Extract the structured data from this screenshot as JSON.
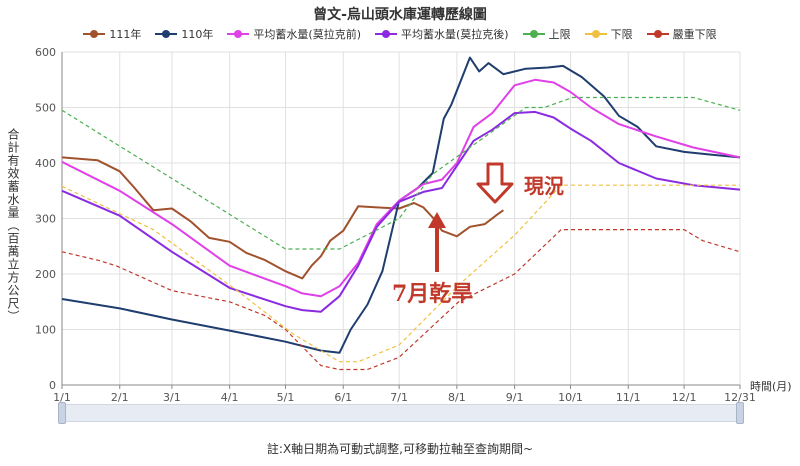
{
  "chart_data": {
    "type": "line",
    "title": "曾文-烏山頭水庫運轉歷線圖",
    "ylabel": "合計有效蓄水量（百萬立方公尺）",
    "xlabel": "時間(月)",
    "ylim": [
      0,
      600
    ],
    "yticks": [
      0,
      100,
      200,
      300,
      400,
      500,
      600
    ],
    "xlim": [
      1,
      365
    ],
    "xticks": [
      {
        "day": 1,
        "label": "1/1"
      },
      {
        "day": 32,
        "label": "2/1"
      },
      {
        "day": 60,
        "label": "3/1"
      },
      {
        "day": 91,
        "label": "4/1"
      },
      {
        "day": 121,
        "label": "5/1"
      },
      {
        "day": 152,
        "label": "6/1"
      },
      {
        "day": 182,
        "label": "7/1"
      },
      {
        "day": 213,
        "label": "8/1"
      },
      {
        "day": 244,
        "label": "9/1"
      },
      {
        "day": 274,
        "label": "10/1"
      },
      {
        "day": 305,
        "label": "11/1"
      },
      {
        "day": 335,
        "label": "12/1"
      },
      {
        "day": 365,
        "label": "12/31"
      }
    ],
    "grid": true,
    "legend_position": "top",
    "series": [
      {
        "name": "111年",
        "color": "#a0522d",
        "style": "solid",
        "marker": true,
        "x": [
          1,
          20,
          32,
          40,
          50,
          60,
          70,
          80,
          91,
          100,
          110,
          121,
          130,
          135,
          140,
          145,
          152,
          160,
          170,
          182,
          190,
          195,
          200,
          205,
          213,
          220,
          228,
          235,
          238
        ],
        "y": [
          410,
          405,
          385,
          355,
          315,
          318,
          295,
          265,
          258,
          238,
          225,
          205,
          192,
          215,
          232,
          260,
          278,
          322,
          320,
          318,
          328,
          320,
          302,
          278,
          268,
          285,
          290,
          308,
          315
        ]
      },
      {
        "name": "110年",
        "color": "#1f3d6e",
        "style": "solid",
        "marker": false,
        "x": [
          1,
          32,
          60,
          91,
          121,
          140,
          150,
          156,
          165,
          173,
          182,
          192,
          200,
          206,
          210,
          220,
          225,
          230,
          238,
          250,
          262,
          270,
          280,
          292,
          300,
          310,
          320,
          335,
          350,
          365
        ],
        "y": [
          155,
          138,
          118,
          98,
          78,
          62,
          58,
          100,
          145,
          205,
          332,
          355,
          382,
          480,
          505,
          590,
          565,
          580,
          560,
          570,
          572,
          575,
          555,
          520,
          485,
          465,
          430,
          420,
          415,
          410
        ]
      },
      {
        "name": "平均蓄水量(莫拉克前)",
        "color": "#e040e8",
        "style": "solid",
        "marker": false,
        "x": [
          1,
          32,
          60,
          91,
          121,
          130,
          140,
          150,
          160,
          170,
          182,
          195,
          205,
          213,
          222,
          232,
          244,
          255,
          265,
          274,
          285,
          300,
          320,
          340,
          365
        ],
        "y": [
          402,
          350,
          290,
          215,
          178,
          165,
          160,
          178,
          220,
          290,
          332,
          362,
          370,
          400,
          465,
          490,
          540,
          550,
          545,
          528,
          500,
          470,
          448,
          428,
          410
        ]
      },
      {
        "name": "平均蓄水量(莫拉克後)",
        "color": "#8a2be2",
        "style": "solid",
        "marker": false,
        "x": [
          1,
          32,
          60,
          91,
          121,
          130,
          140,
          150,
          160,
          170,
          182,
          195,
          205,
          213,
          222,
          232,
          244,
          255,
          265,
          274,
          285,
          300,
          320,
          340,
          365
        ],
        "y": [
          350,
          305,
          240,
          175,
          142,
          135,
          132,
          160,
          215,
          285,
          330,
          348,
          355,
          395,
          440,
          460,
          490,
          492,
          482,
          462,
          440,
          400,
          372,
          360,
          352
        ]
      },
      {
        "name": "上限",
        "color": "#4caf50",
        "style": "dashed",
        "marker": false,
        "x": [
          1,
          121,
          150,
          182,
          200,
          250,
          260,
          275,
          340,
          365
        ],
        "y": [
          495,
          245,
          245,
          300,
          380,
          500,
          500,
          518,
          518,
          495
        ]
      },
      {
        "name": "下限",
        "color": "#f0c040",
        "style": "dashed",
        "marker": false,
        "x": [
          1,
          50,
          95,
          125,
          150,
          160,
          182,
          214,
          244,
          269,
          340,
          365
        ],
        "y": [
          358,
          280,
          170,
          92,
          42,
          42,
          72,
          180,
          270,
          360,
          360,
          360
        ]
      },
      {
        "name": "嚴重下限",
        "color": "#c0392b",
        "style": "dashed",
        "marker": false,
        "x": [
          1,
          20,
          30,
          60,
          91,
          110,
          121,
          140,
          150,
          165,
          182,
          214,
          244,
          269,
          335,
          345,
          365
        ],
        "y": [
          240,
          225,
          215,
          170,
          150,
          125,
          100,
          35,
          28,
          28,
          50,
          150,
          200,
          280,
          280,
          260,
          240
        ]
      }
    ]
  },
  "annotations": {
    "drought_label": "7月乾旱",
    "current_label": "現況"
  },
  "footer": {
    "note": "註:X軸日期為可動式調整,可移動拉軸至查詢期間~"
  }
}
